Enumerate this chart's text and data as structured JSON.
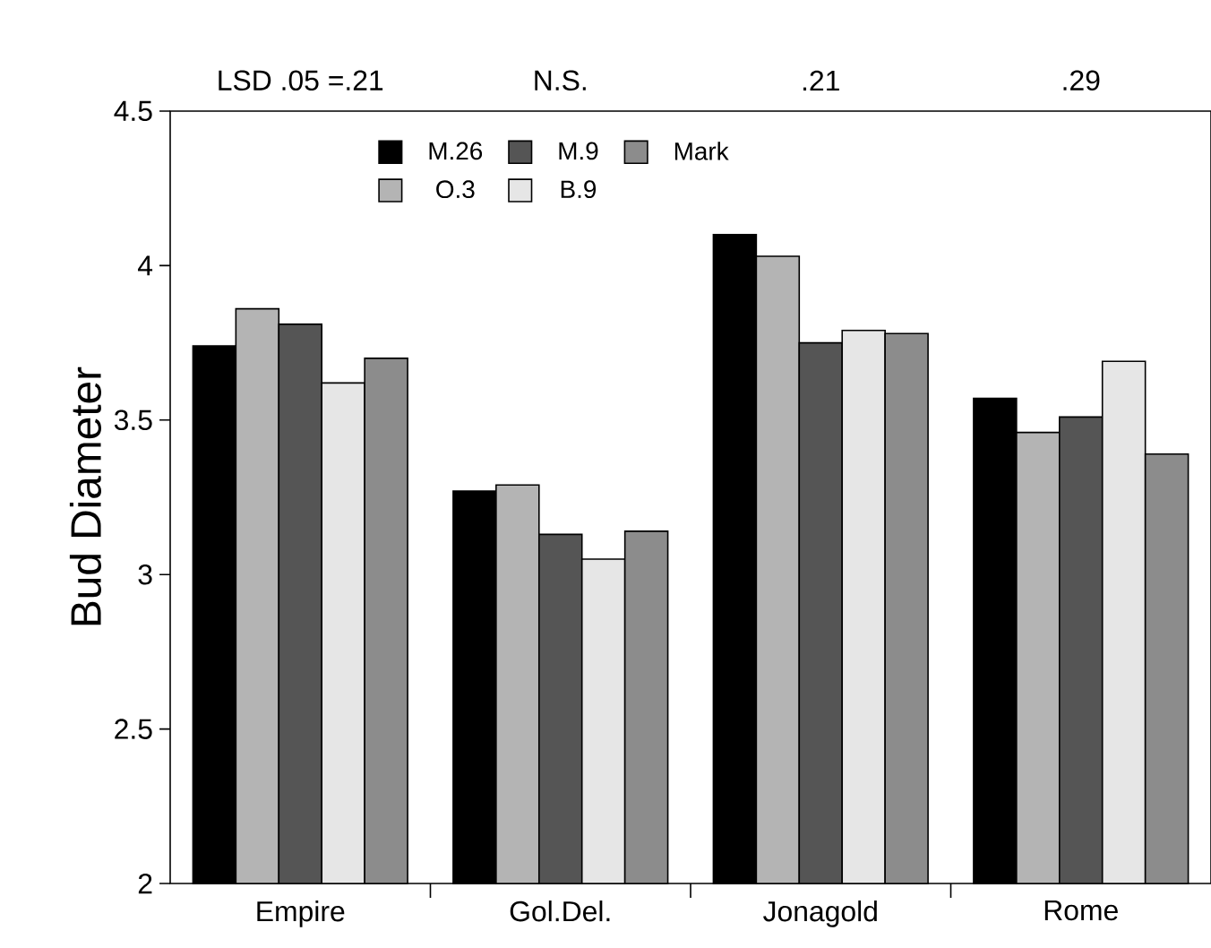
{
  "chart_data": {
    "type": "bar",
    "ylabel": "Bud Diameter",
    "categories": [
      "Empire",
      "Gol.Del.",
      "Jonagold",
      "Rome"
    ],
    "series": [
      {
        "name": "M.26",
        "color": "#000000",
        "values": [
          3.74,
          3.27,
          4.1,
          3.57
        ]
      },
      {
        "name": "O.3",
        "color": "#b4b4b4",
        "values": [
          3.86,
          3.29,
          4.03,
          3.46
        ]
      },
      {
        "name": "M.9",
        "color": "#555555",
        "values": [
          3.81,
          3.13,
          3.75,
          3.51
        ]
      },
      {
        "name": "B.9",
        "color": "#e6e6e6",
        "values": [
          3.62,
          3.05,
          3.79,
          3.69
        ]
      },
      {
        "name": "Mark",
        "color": "#8c8c8c",
        "values": [
          3.7,
          3.14,
          3.78,
          3.39
        ]
      }
    ],
    "ylim": [
      2,
      4.5
    ],
    "yticks": [
      2,
      2.5,
      3,
      3.5,
      4,
      4.5
    ],
    "grid": false,
    "legend": "top",
    "annotations": [
      "LSD .05 =.21",
      "N.S.",
      ".21",
      ".29"
    ]
  }
}
